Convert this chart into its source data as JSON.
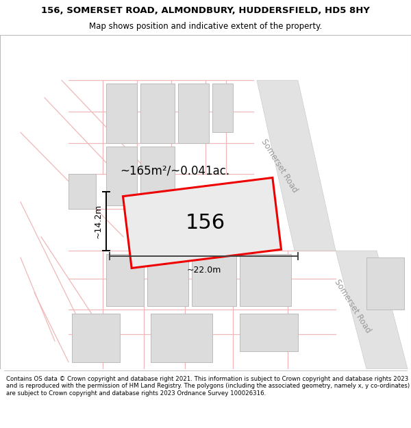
{
  "title_line1": "156, SOMERSET ROAD, ALMONDBURY, HUDDERSFIELD, HD5 8HY",
  "title_line2": "Map shows position and indicative extent of the property.",
  "footer_text": "Contains OS data © Crown copyright and database right 2021. This information is subject to Crown copyright and database rights 2023 and is reproduced with the permission of HM Land Registry. The polygons (including the associated geometry, namely x, y co-ordinates) are subject to Crown copyright and database rights 2023 Ordnance Survey 100026316.",
  "bg_white": "#ffffff",
  "map_bg": "#f7f7f7",
  "road_band_fill": "#e2e2e2",
  "road_band_edge": "#cccccc",
  "building_fill": "#dcdcdc",
  "building_edge": "#bbbbbb",
  "pink_line": "#f0b8b8",
  "prop_fill": "#ebebeb",
  "prop_edge": "#ee0000",
  "prop_label": "156",
  "area_label": "~165m²/~0.041ac.",
  "width_label": "~22.0m",
  "height_label": "~14.2m",
  "road_label": "Somerset Road",
  "title_fontsize": 9.5,
  "subtitle_fontsize": 8.5,
  "footer_fontsize": 6.2
}
